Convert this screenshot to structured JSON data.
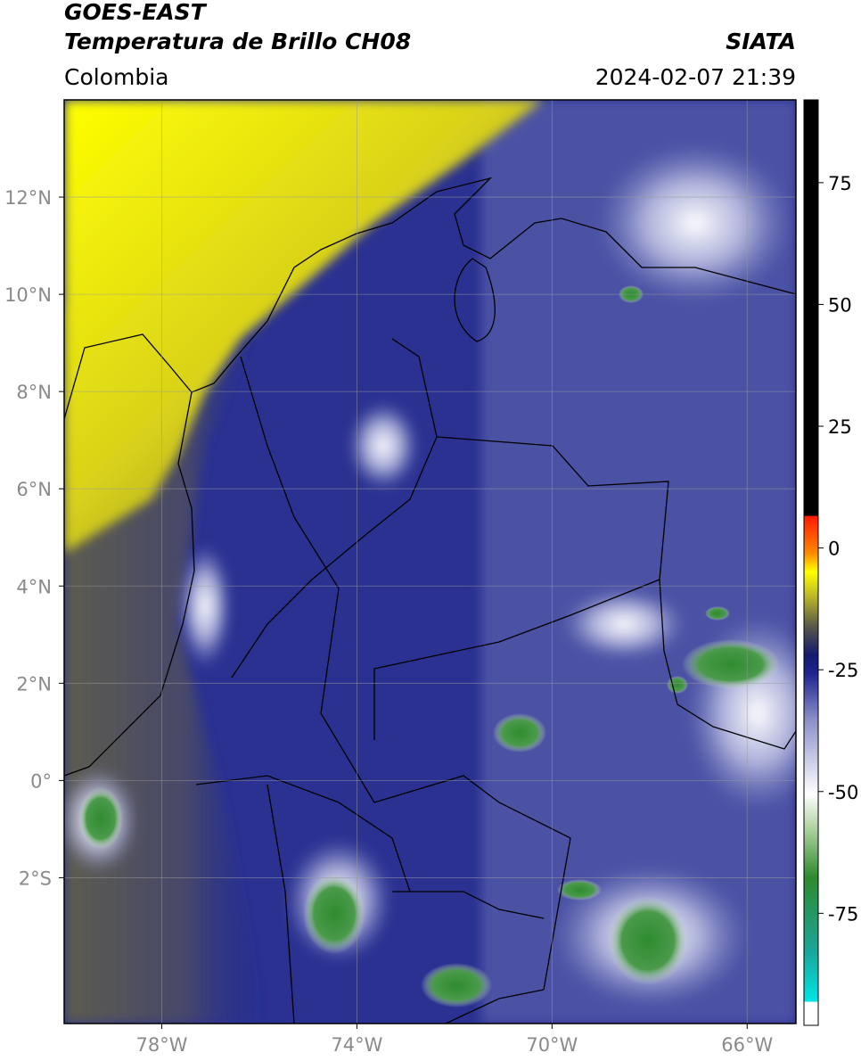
{
  "header": {
    "title": "GOES-EAST",
    "subtitle": "Temperatura de Brillo CH08",
    "source": "SIATA",
    "region": "Colombia",
    "datetime": "2024-02-07 21:39"
  },
  "map": {
    "lonlim": [
      -80,
      -65
    ],
    "latlim": [
      -5,
      14
    ],
    "lon_ticks": [
      {
        "value": -78,
        "label": "78°W"
      },
      {
        "value": -74,
        "label": "74°W"
      },
      {
        "value": -70,
        "label": "70°W"
      },
      {
        "value": -66,
        "label": "66°W"
      }
    ],
    "lat_ticks": [
      {
        "value": 12,
        "label": "12°N"
      },
      {
        "value": 10,
        "label": "10°N"
      },
      {
        "value": 8,
        "label": "8°N"
      },
      {
        "value": 6,
        "label": "6°N"
      },
      {
        "value": 4,
        "label": "4°N"
      },
      {
        "value": 2,
        "label": "2°N"
      },
      {
        "value": 0,
        "label": "0°"
      },
      {
        "value": -2,
        "label": "2°S"
      }
    ]
  },
  "colorbar": {
    "lim": [
      -98,
      92
    ],
    "ticks": [
      75,
      50,
      25,
      0,
      -25,
      -50,
      -75
    ]
  }
}
